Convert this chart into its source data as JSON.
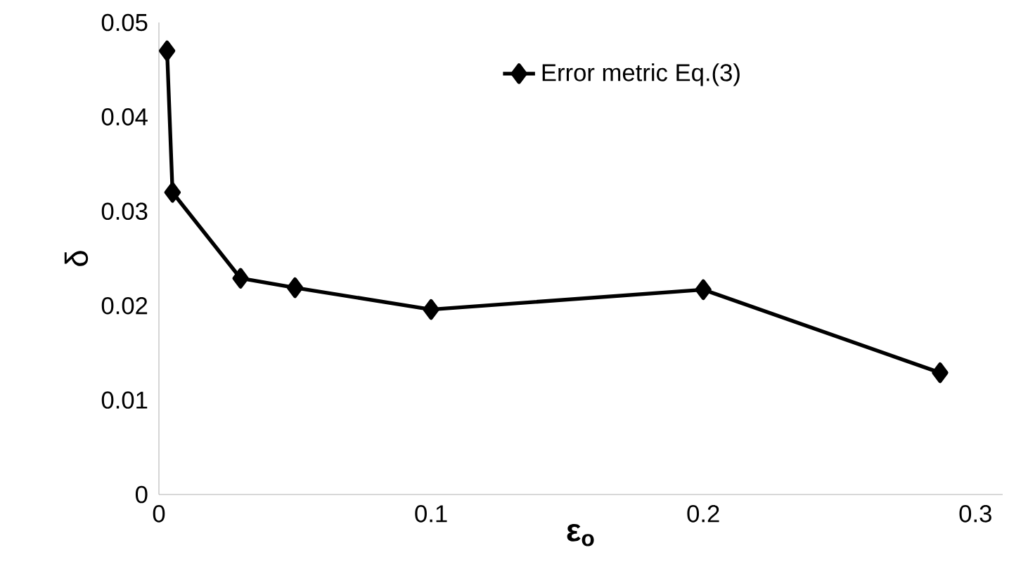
{
  "chart_data": {
    "type": "line",
    "xlabel": "ε$_{o}$",
    "ylabel": "δ",
    "series": [
      {
        "name": "Error metric Eq.(3)",
        "color": "#000000",
        "x": [
          0.003,
          0.005,
          0.03,
          0.05,
          0.1,
          0.2,
          0.287
        ],
        "values": [
          0.047,
          0.032,
          0.0229,
          0.0219,
          0.0196,
          0.0217,
          0.0129
        ]
      }
    ],
    "xlim": [
      0,
      0.31
    ],
    "ylim": [
      0,
      0.05
    ],
    "xticks": [
      0,
      0.1,
      0.2,
      0.3
    ],
    "yticks": [
      0,
      0.01,
      0.02,
      0.03,
      0.04,
      0.05
    ],
    "marker": "diamond",
    "line_style": "solid",
    "legend": "top",
    "grid": false
  }
}
